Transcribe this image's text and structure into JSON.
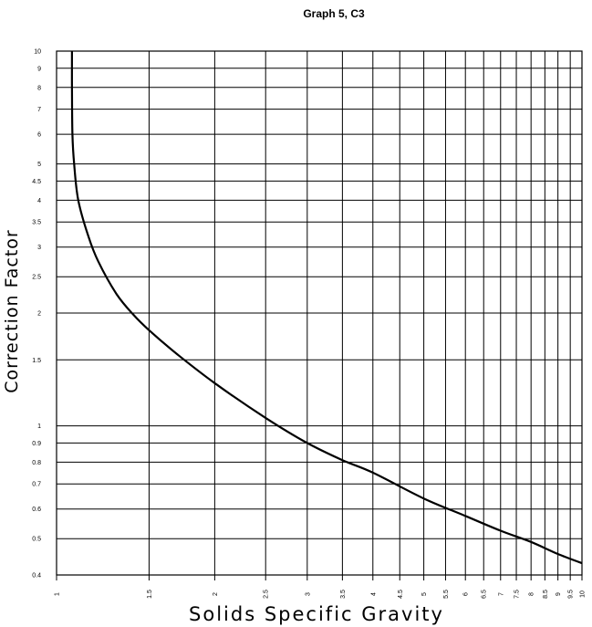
{
  "chart_data": {
    "type": "line",
    "title": "Graph 5, C3",
    "xlabel": "Solids Specific Gravity",
    "ylabel": "Correction Factor",
    "xscale": "log",
    "yscale": "log",
    "xlim": [
      1,
      10
    ],
    "ylim": [
      0.4,
      10
    ],
    "grid": true,
    "x_ticks": [
      "1",
      "1.5",
      "2",
      "2.5",
      "3",
      "3.5",
      "4",
      "4.5",
      "5",
      "5.5",
      "6",
      "6.5",
      "7",
      "7.5",
      "8",
      "8.5",
      "9",
      "9.5",
      "10"
    ],
    "y_ticks": [
      "0.4",
      "0.5",
      "0.6",
      "0.7",
      "0.8",
      "0.9",
      "1",
      "1.5",
      "2",
      "2.5",
      "3",
      "3.5",
      "4",
      "4.5",
      "5",
      "6",
      "7",
      "8",
      "9",
      "10"
    ],
    "series": [
      {
        "x": [
          1.07,
          1.07,
          1.072,
          1.08,
          1.1,
          1.15,
          1.2,
          1.3,
          1.4,
          1.5,
          1.7,
          2.0,
          2.5,
          3.0,
          3.5,
          4.0,
          5.0,
          6.0,
          7.0,
          8.0,
          9.0,
          10.0
        ],
        "values": [
          10,
          8,
          6.0,
          5.0,
          4.0,
          3.2,
          2.75,
          2.25,
          1.98,
          1.8,
          1.55,
          1.3,
          1.05,
          0.9,
          0.81,
          0.75,
          0.64,
          0.575,
          0.525,
          0.49,
          0.455,
          0.43
        ]
      }
    ]
  }
}
